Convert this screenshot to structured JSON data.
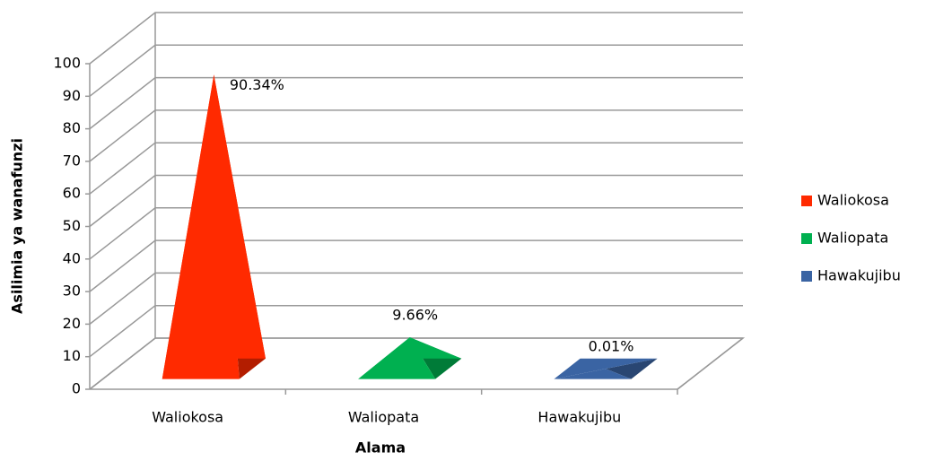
{
  "chart_data": {
    "type": "pyramid3d",
    "y_label": "Asilimia ya wanafunzi",
    "x_label": "Alama",
    "categories": [
      "Waliokosa",
      "Waliopata",
      "Hawakujibu"
    ],
    "series": [
      {
        "name": "Waliokosa",
        "color": "#ff2a00"
      },
      {
        "name": "Waliopata",
        "color": "#00b050"
      },
      {
        "name": "Hawakujibu",
        "color": "#3a64a3"
      }
    ],
    "values": [
      90.34,
      9.66,
      0.01
    ],
    "value_labels": [
      "90.34%",
      "9.66%",
      "0.01%"
    ],
    "ylim": [
      0,
      100
    ],
    "yticks": [
      0,
      10,
      20,
      30,
      40,
      50,
      60,
      70,
      80,
      90,
      100
    ],
    "grid": true,
    "legend": "right"
  }
}
